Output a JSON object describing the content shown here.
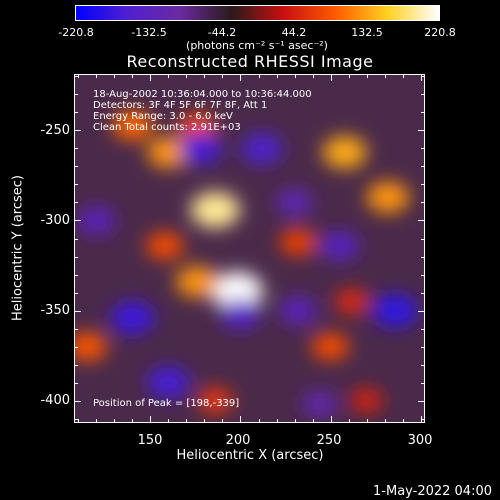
{
  "colorbar": {
    "tick_labels": [
      "-220.8",
      "-132.5",
      "-44.2",
      "44.2",
      "132.5",
      "220.8"
    ],
    "range": [
      -220.8,
      220.8
    ],
    "units": "(photons cm⁻² s⁻¹ asec⁻²)",
    "colors": [
      "#0000ff",
      "#5020d0",
      "#6a2aa0",
      "#2a1a1a",
      "#c81010",
      "#ff5a00",
      "#ffd020",
      "#ffffff"
    ]
  },
  "plot": {
    "title": "Reconstructed RHESSI Image",
    "info_lines": [
      "18-Aug-2002 10:36:04.000 to 10:36:44.000",
      "Detectors: 3F 4F 5F 6F 7F 8F, Att 1",
      "Energy Range: 3.0 - 6.0 keV",
      "Clean    Total counts: 2.91E+03"
    ],
    "peak_text": "Position of Peak = [198,-339]",
    "xlabel": "Heliocentric X (arcsec)",
    "ylabel": "Heliocentric Y (arcsec)",
    "x_tick_labels": [
      "150",
      "200",
      "250",
      "300"
    ],
    "y_tick_labels": [
      "-250",
      "-300",
      "-350",
      "-400"
    ]
  },
  "chart_data": {
    "type": "heatmap",
    "title": "Reconstructed RHESSI Image",
    "xlabel": "Heliocentric X (arcsec)",
    "ylabel": "Heliocentric Y (arcsec)",
    "xlim": [
      108,
      302
    ],
    "ylim": [
      -412,
      -219
    ],
    "color_range": [
      -220.8,
      220.8
    ],
    "peak": {
      "x": 198,
      "y": -339
    },
    "sources": [
      {
        "x": 198,
        "y": -339,
        "value": 220.8
      },
      {
        "x": 186,
        "y": -294,
        "value": 200
      },
      {
        "x": 160,
        "y": -262,
        "value": 150
      },
      {
        "x": 140,
        "y": -247,
        "value": 130
      },
      {
        "x": 176,
        "y": -248,
        "value": 110
      },
      {
        "x": 258,
        "y": -262,
        "value": 160
      },
      {
        "x": 282,
        "y": -287,
        "value": 150
      },
      {
        "x": 176,
        "y": -334,
        "value": 150
      },
      {
        "x": 158,
        "y": -314,
        "value": 110
      },
      {
        "x": 232,
        "y": -312,
        "value": 100
      },
      {
        "x": 250,
        "y": -370,
        "value": 110
      },
      {
        "x": 262,
        "y": -345,
        "value": 80
      },
      {
        "x": 115,
        "y": -370,
        "value": 120
      },
      {
        "x": 186,
        "y": -400,
        "value": 90
      },
      {
        "x": 270,
        "y": -400,
        "value": 70
      },
      {
        "x": 140,
        "y": -354,
        "value": -160
      },
      {
        "x": 178,
        "y": -260,
        "value": -150
      },
      {
        "x": 212,
        "y": -260,
        "value": -140
      },
      {
        "x": 200,
        "y": -352,
        "value": -130
      },
      {
        "x": 160,
        "y": -390,
        "value": -150
      },
      {
        "x": 286,
        "y": -350,
        "value": -170
      },
      {
        "x": 232,
        "y": -350,
        "value": -110
      },
      {
        "x": 244,
        "y": -402,
        "value": -90
      },
      {
        "x": 255,
        "y": -314,
        "value": -120
      },
      {
        "x": 230,
        "y": -290,
        "value": -100
      },
      {
        "x": 120,
        "y": -300,
        "value": -110
      }
    ]
  },
  "footer": {
    "timestamp": "1-May-2022 04:00"
  }
}
